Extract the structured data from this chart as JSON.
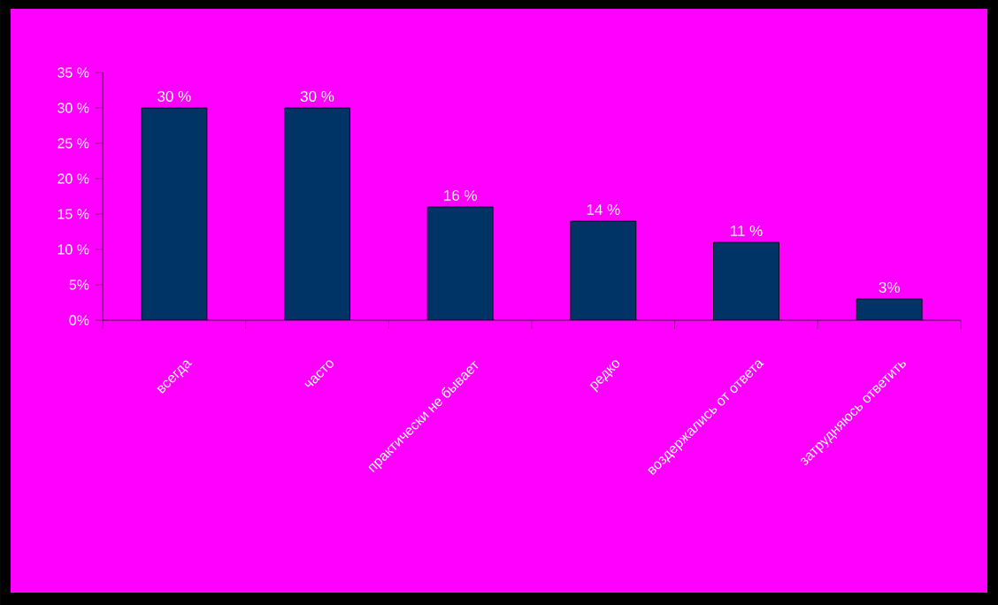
{
  "chart_data": {
    "type": "bar",
    "categories": [
      "всегда",
      "часто",
      "практически не бывает",
      "редко",
      "воздержались от ответа",
      "затрудняюсь ответить"
    ],
    "values": [
      30,
      30,
      16,
      14,
      11,
      3
    ],
    "value_labels": [
      "30 %",
      "30 %",
      "16 %",
      "14 %",
      "11 %",
      "3%"
    ],
    "color": "#003366",
    "ylim": [
      0,
      35
    ],
    "yticks": [
      {
        "value": 0,
        "label": "0%"
      },
      {
        "value": 5,
        "label": "5%"
      },
      {
        "value": 10,
        "label": "10 %"
      },
      {
        "value": 15,
        "label": "15 %"
      },
      {
        "value": 20,
        "label": "20 %"
      },
      {
        "value": 25,
        "label": "25 %"
      },
      {
        "value": 30,
        "label": "30 %"
      },
      {
        "value": 35,
        "label": "35 %"
      }
    ],
    "grid": false
  }
}
